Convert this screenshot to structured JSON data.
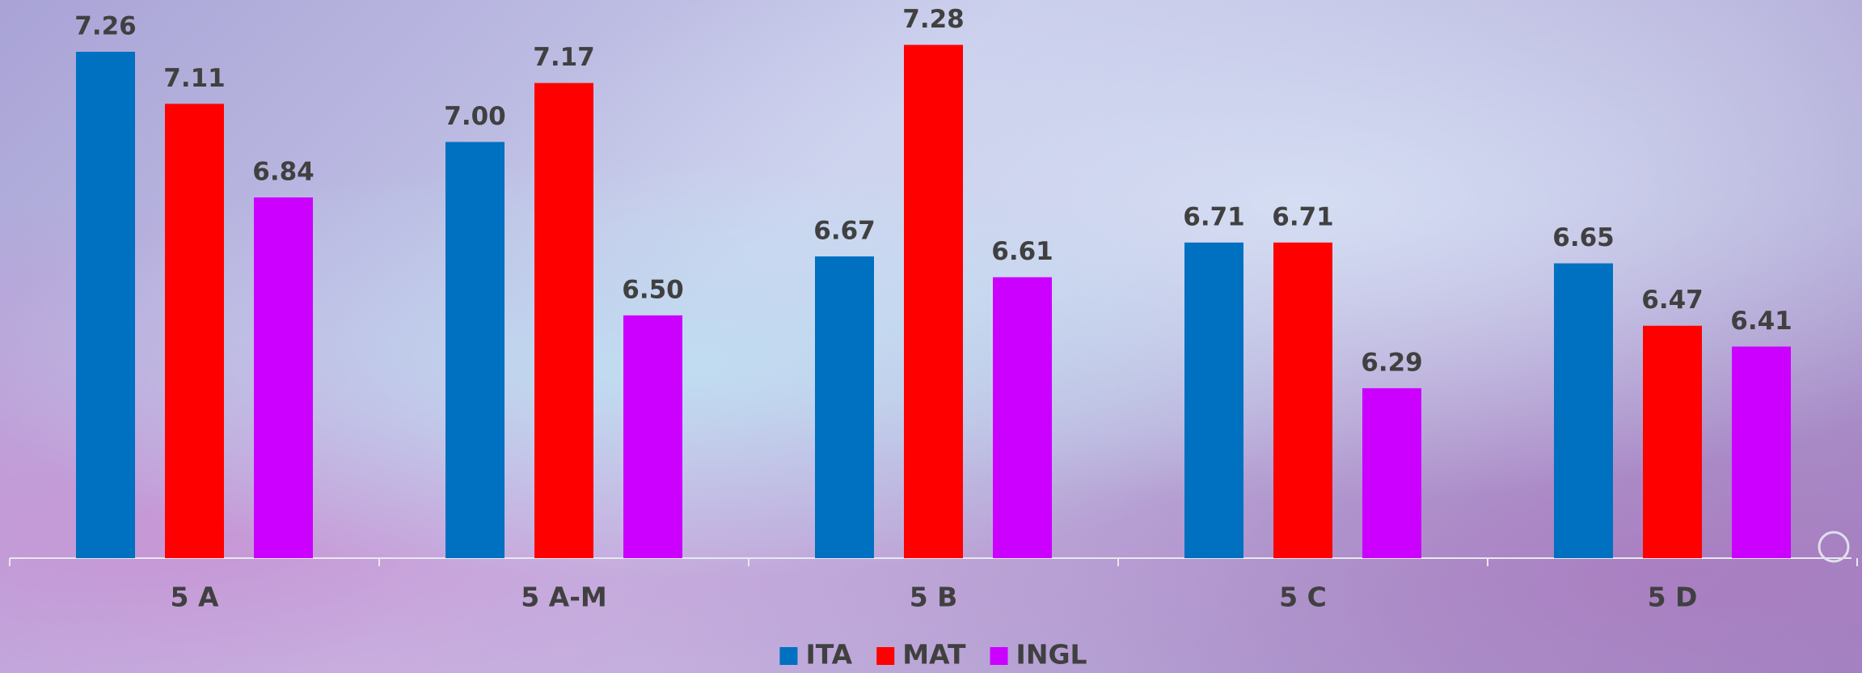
{
  "chart_data": {
    "type": "bar",
    "categories": [
      "5 A",
      "5 A-M",
      "5 B",
      "5 C",
      "5 D"
    ],
    "series": [
      {
        "name": "ITA",
        "color": "#0070c0",
        "values": [
          7.26,
          7.0,
          6.67,
          6.71,
          6.65
        ],
        "value_labels": [
          "7.26",
          "7.00",
          "6.67",
          "6.71",
          "6.65"
        ]
      },
      {
        "name": "MAT",
        "color": "#ff0000",
        "values": [
          7.11,
          7.17,
          7.28,
          6.71,
          6.47
        ],
        "value_labels": [
          "7.11",
          "7.17",
          "7.28",
          "6.71",
          "6.47"
        ]
      },
      {
        "name": "INGL",
        "color": "#cc00ff",
        "values": [
          6.84,
          6.5,
          6.61,
          6.29,
          6.41
        ],
        "value_labels": [
          "6.84",
          "6.50",
          "6.61",
          "6.29",
          "6.41"
        ]
      }
    ],
    "ylim": [
      5.8,
      7.4
    ],
    "legend": "bottom"
  }
}
